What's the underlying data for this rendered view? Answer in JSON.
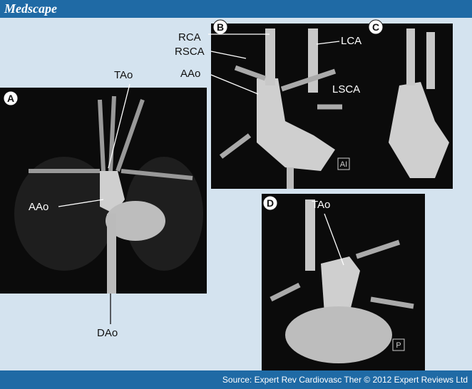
{
  "header": {
    "brand": "Medscape"
  },
  "panels": [
    {
      "letter": "A",
      "labels": [
        "TAo",
        "AAo",
        "DAo"
      ]
    },
    {
      "letter": "B",
      "labels": [
        "RCA",
        "RSCA",
        "AAo",
        "LCA",
        "LSCA"
      ],
      "marker": "AI"
    },
    {
      "letter": "C"
    },
    {
      "letter": "D",
      "labels": [
        "TAo"
      ],
      "marker": "P"
    }
  ],
  "footer": {
    "source": "Source: Expert Rev Cardiovasc Ther © 2012 Expert Reviews Ltd"
  }
}
